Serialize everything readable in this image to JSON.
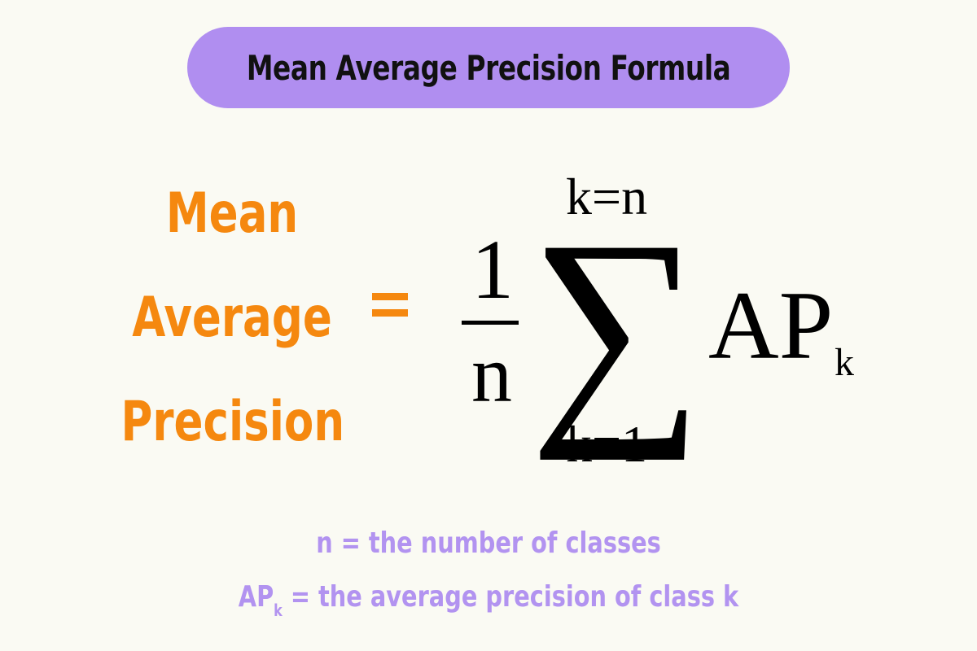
{
  "header": {
    "title": "Mean Average Precision Formula"
  },
  "formula": {
    "lhs_lines": [
      "Mean",
      "Average",
      "Precision"
    ],
    "numerator": "1",
    "denominator": "n",
    "sum_symbol": "∑",
    "upper_limit": "k=n",
    "lower_limit": "k=1",
    "term": "AP",
    "term_subscript": "k"
  },
  "legend": {
    "line1": "n = the number of classes",
    "line2_symbol": "AP",
    "line2_subscript": "k",
    "line2_rest": " = the average precision of class k"
  },
  "colors": {
    "background": "#fafaf3",
    "title_pill": "#b08ef0",
    "accent_orange": "#f5880f",
    "legend_purple": "#b293f0",
    "formula_black": "#000000"
  }
}
